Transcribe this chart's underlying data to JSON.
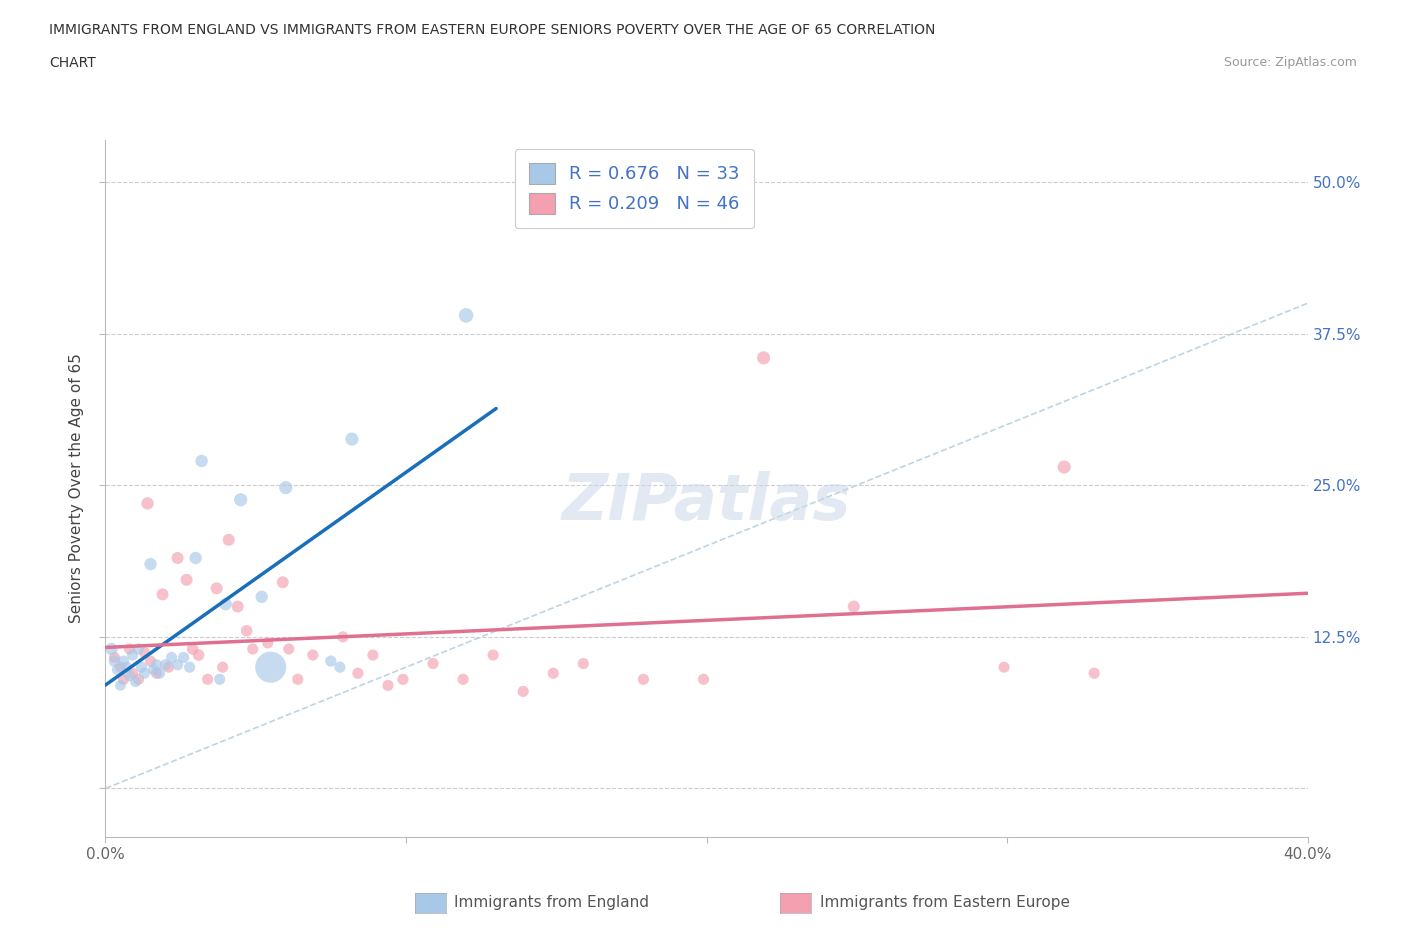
{
  "title_line1": "IMMIGRANTS FROM ENGLAND VS IMMIGRANTS FROM EASTERN EUROPE SENIORS POVERTY OVER THE AGE OF 65 CORRELATION",
  "title_line2": "CHART",
  "source": "Source: ZipAtlas.com",
  "ylabel": "Seniors Poverty Over the Age of 65",
  "legend_bottom": [
    "Immigrants from England",
    "Immigrants from Eastern Europe"
  ],
  "R_england": 0.676,
  "N_england": 33,
  "R_eastern": 0.209,
  "N_eastern": 46,
  "xlim": [
    0.0,
    0.4
  ],
  "ylim": [
    -0.04,
    0.535
  ],
  "xtick_vals": [
    0.0,
    0.1,
    0.2,
    0.3,
    0.4
  ],
  "xticklabels": [
    "0.0%",
    "",
    "",
    "",
    "40.0%"
  ],
  "ytick_vals": [
    0.0,
    0.125,
    0.25,
    0.375,
    0.5
  ],
  "yticklabels": [
    "",
    "12.5%",
    "25.0%",
    "37.5%",
    "50.0%"
  ],
  "color_england": "#a8c8e8",
  "color_eastern": "#f4a0b0",
  "color_england_line": "#1a6fba",
  "color_eastern_line": "#e07090",
  "color_diagonal": "#b8cfe0",
  "england_scatter": [
    [
      0.002,
      0.115
    ],
    [
      0.003,
      0.105
    ],
    [
      0.004,
      0.098
    ],
    [
      0.005,
      0.085
    ],
    [
      0.006,
      0.105
    ],
    [
      0.007,
      0.1
    ],
    [
      0.008,
      0.093
    ],
    [
      0.009,
      0.11
    ],
    [
      0.01,
      0.088
    ],
    [
      0.011,
      0.115
    ],
    [
      0.012,
      0.1
    ],
    [
      0.013,
      0.095
    ],
    [
      0.015,
      0.185
    ],
    [
      0.016,
      0.098
    ],
    [
      0.017,
      0.102
    ],
    [
      0.018,
      0.095
    ],
    [
      0.02,
      0.102
    ],
    [
      0.022,
      0.108
    ],
    [
      0.024,
      0.102
    ],
    [
      0.026,
      0.108
    ],
    [
      0.028,
      0.1
    ],
    [
      0.03,
      0.19
    ],
    [
      0.032,
      0.27
    ],
    [
      0.038,
      0.09
    ],
    [
      0.04,
      0.152
    ],
    [
      0.045,
      0.238
    ],
    [
      0.052,
      0.158
    ],
    [
      0.055,
      0.1
    ],
    [
      0.06,
      0.248
    ],
    [
      0.075,
      0.105
    ],
    [
      0.078,
      0.1
    ],
    [
      0.082,
      0.288
    ],
    [
      0.12,
      0.39
    ]
  ],
  "eastern_scatter": [
    [
      0.003,
      0.108
    ],
    [
      0.005,
      0.1
    ],
    [
      0.006,
      0.09
    ],
    [
      0.008,
      0.115
    ],
    [
      0.009,
      0.095
    ],
    [
      0.011,
      0.09
    ],
    [
      0.013,
      0.112
    ],
    [
      0.014,
      0.235
    ],
    [
      0.015,
      0.105
    ],
    [
      0.017,
      0.095
    ],
    [
      0.019,
      0.16
    ],
    [
      0.021,
      0.1
    ],
    [
      0.024,
      0.19
    ],
    [
      0.027,
      0.172
    ],
    [
      0.029,
      0.115
    ],
    [
      0.031,
      0.11
    ],
    [
      0.034,
      0.09
    ],
    [
      0.037,
      0.165
    ],
    [
      0.039,
      0.1
    ],
    [
      0.041,
      0.205
    ],
    [
      0.044,
      0.15
    ],
    [
      0.047,
      0.13
    ],
    [
      0.049,
      0.115
    ],
    [
      0.054,
      0.12
    ],
    [
      0.059,
      0.17
    ],
    [
      0.061,
      0.115
    ],
    [
      0.064,
      0.09
    ],
    [
      0.069,
      0.11
    ],
    [
      0.079,
      0.125
    ],
    [
      0.084,
      0.095
    ],
    [
      0.089,
      0.11
    ],
    [
      0.094,
      0.085
    ],
    [
      0.099,
      0.09
    ],
    [
      0.109,
      0.103
    ],
    [
      0.119,
      0.09
    ],
    [
      0.129,
      0.11
    ],
    [
      0.139,
      0.08
    ],
    [
      0.149,
      0.095
    ],
    [
      0.159,
      0.103
    ],
    [
      0.179,
      0.09
    ],
    [
      0.199,
      0.09
    ],
    [
      0.219,
      0.355
    ],
    [
      0.249,
      0.15
    ],
    [
      0.299,
      0.1
    ],
    [
      0.319,
      0.265
    ],
    [
      0.329,
      0.095
    ]
  ],
  "england_sizes": [
    80,
    70,
    65,
    60,
    65,
    65,
    65,
    65,
    60,
    65,
    65,
    65,
    80,
    65,
    65,
    65,
    65,
    65,
    65,
    65,
    65,
    80,
    80,
    65,
    80,
    90,
    80,
    500,
    90,
    65,
    65,
    90,
    110
  ],
  "eastern_sizes": [
    65,
    65,
    65,
    65,
    65,
    65,
    65,
    80,
    65,
    65,
    75,
    65,
    75,
    75,
    70,
    70,
    65,
    75,
    65,
    75,
    75,
    70,
    65,
    65,
    75,
    65,
    65,
    65,
    65,
    65,
    65,
    65,
    65,
    65,
    65,
    65,
    65,
    65,
    65,
    65,
    65,
    90,
    75,
    65,
    90,
    65
  ],
  "eng_line_x": [
    0.0,
    0.13
  ],
  "eas_line_x": [
    0.0,
    0.4
  ]
}
